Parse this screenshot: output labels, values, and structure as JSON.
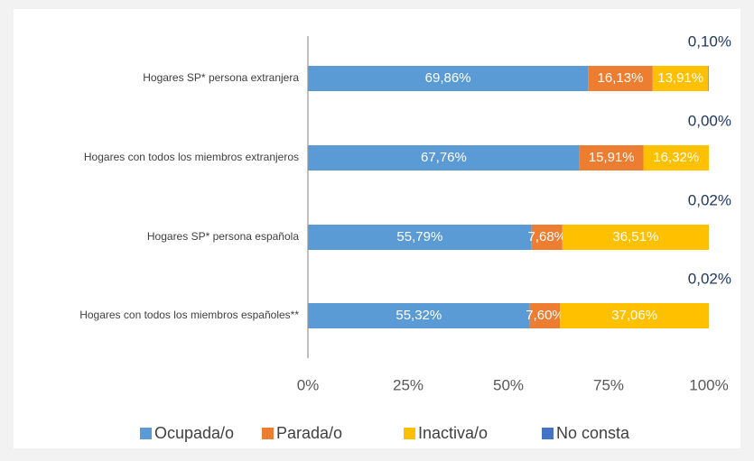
{
  "chart_data": {
    "type": "stacked_bar_horizontal",
    "categories": [
      "Hogares SP* persona extranjera",
      "Hogares con todos los miembros extranjeros",
      "Hogares SP* persona española",
      "Hogares con todos los miembros españoles**"
    ],
    "series": [
      {
        "name": "Ocupada/o",
        "color": "#5b9bd5",
        "values": [
          69.86,
          67.76,
          55.79,
          55.32
        ],
        "value_labels": [
          "69,86%",
          "67,76%",
          "55,79%",
          "55,32%"
        ]
      },
      {
        "name": "Parada/o",
        "color": "#ed7d31",
        "values": [
          16.13,
          15.91,
          7.68,
          7.6
        ],
        "value_labels": [
          "16,13%",
          "15,91%",
          "7,68%",
          "7,60%"
        ]
      },
      {
        "name": "Inactiva/o",
        "color": "#ffc000",
        "values": [
          13.91,
          16.32,
          36.51,
          37.06
        ],
        "value_labels": [
          "13,91%",
          "16,32%",
          "36,51%",
          "37,06%"
        ]
      },
      {
        "name": "No consta",
        "color": "#4472c4",
        "values": [
          0.1,
          0.0,
          0.02,
          0.02
        ],
        "value_labels": [
          "0,10%",
          "0,00%",
          "0,02%",
          "0,02%"
        ]
      }
    ],
    "xlim": [
      0,
      100
    ],
    "xticks": [
      {
        "value": 0,
        "label": "0%"
      },
      {
        "value": 25,
        "label": "25%"
      },
      {
        "value": 50,
        "label": "50%"
      },
      {
        "value": 75,
        "label": "75%"
      },
      {
        "value": 100,
        "label": "100%"
      }
    ],
    "legend": "bottom"
  }
}
